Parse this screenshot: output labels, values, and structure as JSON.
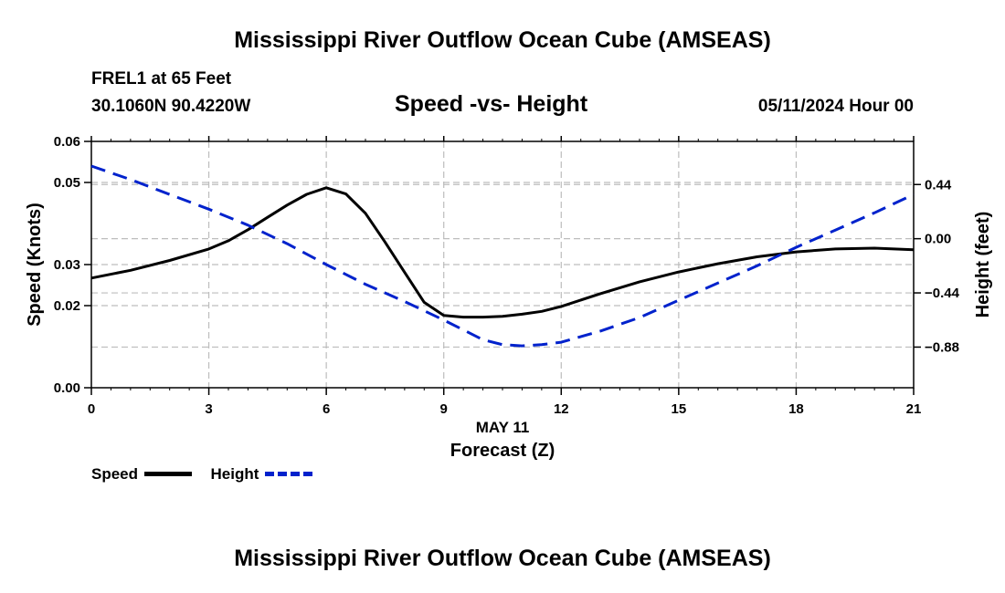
{
  "page": {
    "title": "Mississippi River Outflow Ocean Cube (AMSEAS)",
    "footer_title": "Mississippi River Outflow Ocean Cube (AMSEAS)",
    "station": "FREL1 at 65 Feet",
    "coordinates": "30.1060N  90.4220W",
    "subtitle": "Speed -vs- Height",
    "date": "05/11/2024 Hour 00"
  },
  "chart_data": {
    "type": "line",
    "title": "Speed -vs- Height",
    "xlabel": "Forecast (Z)",
    "xsublabel": "MAY 11",
    "ylabel": "Speed (Knots)",
    "y2label": "Height (feet)",
    "xlim": [
      0,
      21
    ],
    "ylim": [
      0,
      0.06
    ],
    "y2lim": [
      -1.21,
      0.79
    ],
    "x_ticks": [
      0,
      3,
      6,
      9,
      12,
      15,
      18,
      21
    ],
    "x_tick_labels": [
      "0",
      "3",
      "6",
      "9",
      "12",
      "15",
      "18",
      "21"
    ],
    "y_ticks": [
      0,
      0.02,
      0.03,
      0.05,
      0.06
    ],
    "y_tick_labels": [
      "0.00",
      "0.02",
      "0.03",
      "0.05",
      "0.06"
    ],
    "y2_ticks": [
      0.44,
      0,
      -0.44,
      -0.88
    ],
    "y2_tick_labels": [
      "0.44",
      "0.00",
      "−0.44",
      "−0.88"
    ],
    "grid": true,
    "legend": "bottom-left",
    "series": [
      {
        "name": "Speed",
        "axis": "left",
        "color": "#000000",
        "dash": "solid",
        "x": [
          0,
          1,
          2,
          3,
          3.5,
          4,
          4.5,
          5,
          5.5,
          6,
          6.5,
          7,
          7.5,
          8,
          8.5,
          9,
          9.5,
          10,
          10.5,
          11,
          11.5,
          12,
          13,
          14,
          15,
          16,
          17,
          18,
          19,
          20,
          21
        ],
        "values": [
          0.0267,
          0.0286,
          0.031,
          0.0338,
          0.0358,
          0.0385,
          0.0415,
          0.0445,
          0.0471,
          0.0487,
          0.0472,
          0.0425,
          0.0355,
          0.0281,
          0.0208,
          0.0176,
          0.0172,
          0.0172,
          0.0174,
          0.0179,
          0.0186,
          0.0198,
          0.0229,
          0.0258,
          0.0282,
          0.0302,
          0.0319,
          0.0331,
          0.0338,
          0.034,
          0.0336
        ]
      },
      {
        "name": "Height",
        "axis": "right",
        "color": "#0022cc",
        "dash": "dashed",
        "x": [
          0,
          1,
          2,
          3,
          4,
          5,
          6,
          7,
          8,
          9,
          10,
          10.5,
          11,
          11.5,
          12,
          13,
          14,
          15,
          16,
          17,
          18,
          19,
          20,
          21
        ],
        "values": [
          0.59,
          0.48,
          0.36,
          0.24,
          0.11,
          -0.04,
          -0.21,
          -0.37,
          -0.51,
          -0.66,
          -0.82,
          -0.86,
          -0.87,
          -0.86,
          -0.84,
          -0.75,
          -0.64,
          -0.5,
          -0.36,
          -0.22,
          -0.07,
          0.07,
          0.21,
          0.36
        ]
      }
    ]
  }
}
